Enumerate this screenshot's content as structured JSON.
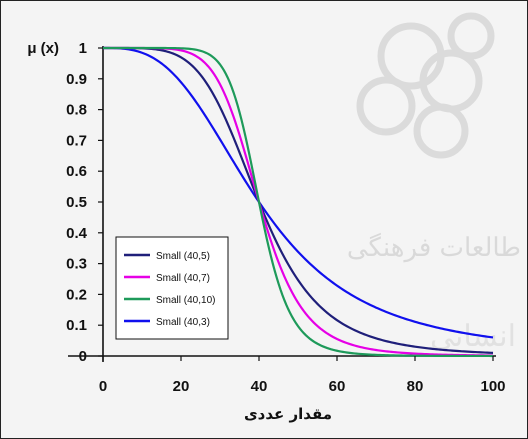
{
  "chart_data": {
    "type": "line",
    "xlabel": "مقدار عددی",
    "ylabel": "μ (x)",
    "xlim": [
      0,
      100
    ],
    "ylim": [
      0,
      1
    ],
    "xticks": [
      "0",
      "20",
      "40",
      "60",
      "80",
      "100"
    ],
    "yticks": [
      "0",
      "0.1",
      "0.2",
      "0.3",
      "0.4",
      "0.5",
      "0.6",
      "0.7",
      "0.8",
      "0.9",
      "1"
    ],
    "grid": false,
    "legend_position": "lower-left",
    "series": [
      {
        "name": "Small (40,5)",
        "color": "#1f1f7a",
        "a": 40,
        "b": 5,
        "x": [
          0,
          10,
          20,
          30,
          40,
          50,
          60,
          70,
          80,
          90,
          100
        ],
        "values": [
          1.0,
          1.0,
          0.97,
          0.81,
          0.5,
          0.19,
          0.09,
          0.04,
          0.02,
          0.01,
          0.01
        ]
      },
      {
        "name": "Small (40,7)",
        "color": "#e600e6",
        "a": 40,
        "b": 7,
        "x": [
          0,
          10,
          20,
          30,
          40,
          50,
          60,
          70,
          80,
          90,
          100
        ],
        "values": [
          1.0,
          1.0,
          1.0,
          0.95,
          0.5,
          0.06,
          0.01,
          0.0,
          0.0,
          0.0,
          0.0
        ]
      },
      {
        "name": "Small (40,10)",
        "color": "#1e9a5a",
        "a": 40,
        "b": 10,
        "x": [
          0,
          10,
          20,
          30,
          40,
          50,
          60,
          70,
          80,
          90,
          100
        ],
        "values": [
          1.0,
          1.0,
          1.0,
          0.99,
          0.5,
          0.01,
          0.0,
          0.0,
          0.0,
          0.0,
          0.0
        ]
      },
      {
        "name": "Small (40,3)",
        "color": "#1010ee",
        "a": 40,
        "b": 3,
        "x": [
          0,
          10,
          20,
          30,
          40,
          50,
          60,
          70,
          80,
          90,
          100
        ],
        "values": [
          1.0,
          0.98,
          0.89,
          0.7,
          0.5,
          0.35,
          0.23,
          0.16,
          0.11,
          0.08,
          0.06
        ]
      }
    ]
  },
  "watermark": {
    "text_1": "طالعات فرهنگی",
    "text_2": "انسانی"
  }
}
